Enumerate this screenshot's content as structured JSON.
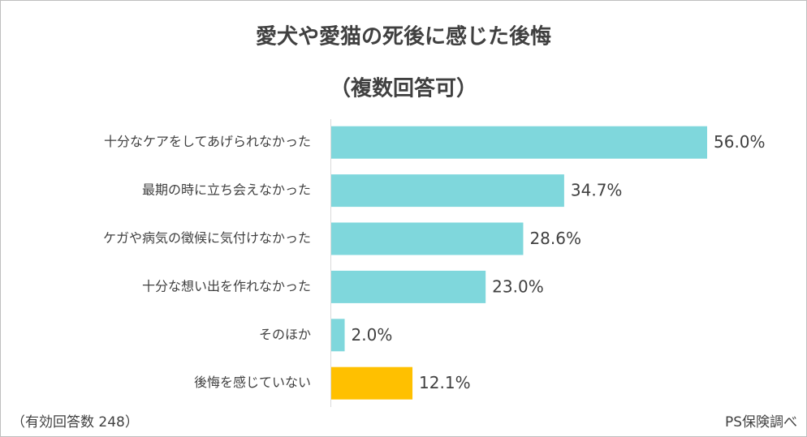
{
  "chart_data": {
    "type": "bar",
    "orientation": "horizontal",
    "title": "愛犬や愛猫の死後に感じた後悔",
    "subtitle": "（複数回答可）",
    "categories": [
      "十分なケアをしてあげられなかった",
      "最期の時に立ち会えなかった",
      "ケガや病気の徴候に気付けなかった",
      "十分な想い出を作れなかった",
      "そのほか",
      "後悔を感じていない"
    ],
    "values": [
      56.0,
      34.7,
      28.6,
      23.0,
      2.0,
      12.1
    ],
    "value_labels": [
      "56.0%",
      "34.7%",
      "28.6%",
      "23.0%",
      "2.0%",
      "12.1%"
    ],
    "colors": [
      "#7fd7dc",
      "#7fd7dc",
      "#7fd7dc",
      "#7fd7dc",
      "#7fd7dc",
      "#ffc000"
    ],
    "note_left": "（有効回答数 248）",
    "note_right": "PS保険調べ"
  }
}
